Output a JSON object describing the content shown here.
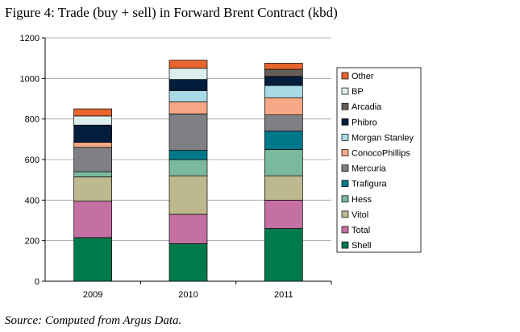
{
  "title": "Figure 4: Trade (buy + sell) in Forward Brent Contract (kbd)",
  "source": "Source: Computed from Argus Data.",
  "chart_data": {
    "type": "bar",
    "stacked": true,
    "title": "Figure 4: Trade (buy + sell) in Forward Brent Contract (kbd)",
    "xlabel": "",
    "ylabel": "",
    "categories": [
      "2009",
      "2010",
      "2011"
    ],
    "ylim": [
      0,
      1200
    ],
    "yticks": [
      0,
      200,
      400,
      600,
      800,
      1000,
      1200
    ],
    "grid": true,
    "legend_position": "right",
    "series": [
      {
        "name": "Shell",
        "color": "#007a4d",
        "values": [
          215,
          185,
          260
        ]
      },
      {
        "name": "Total",
        "color": "#c470a2",
        "values": [
          180,
          145,
          140
        ]
      },
      {
        "name": "Vitol",
        "color": "#bdb88e",
        "values": [
          120,
          190,
          120
        ]
      },
      {
        "name": "Hess",
        "color": "#7ab89f",
        "values": [
          25,
          80,
          130
        ]
      },
      {
        "name": "Trafigura",
        "color": "#00788c",
        "values": [
          0,
          45,
          90
        ]
      },
      {
        "name": "Mercuria",
        "color": "#7f8084",
        "values": [
          120,
          180,
          80
        ]
      },
      {
        "name": "ConocoPhillips",
        "color": "#f7a987",
        "values": [
          25,
          60,
          85
        ]
      },
      {
        "name": "Morgan Stanley",
        "color": "#a9dbe6",
        "values": [
          0,
          55,
          60
        ]
      },
      {
        "name": "Phibro",
        "color": "#031d3c",
        "values": [
          85,
          55,
          45
        ]
      },
      {
        "name": "Arcadia",
        "color": "#665e57",
        "values": [
          0,
          0,
          35
        ]
      },
      {
        "name": "BP",
        "color": "#dcefec",
        "values": [
          45,
          55,
          0
        ]
      },
      {
        "name": "Other",
        "color": "#e8652d",
        "values": [
          35,
          40,
          30
        ]
      }
    ]
  }
}
